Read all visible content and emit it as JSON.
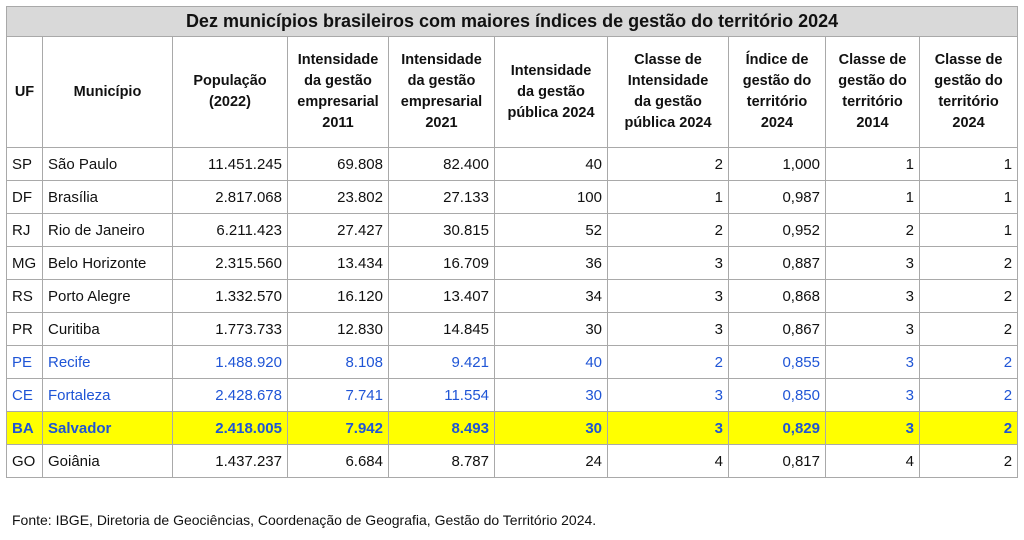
{
  "title": "Dez municípios brasileiros com maiores índices de gestão do território 2024",
  "headers": [
    "UF",
    "Município",
    "População\n(2022)",
    "Intensidade\nda gestão\nempresarial\n2011",
    "Intensidade\nda gestão\nempresarial\n2021",
    "Intensidade\nda gestão\npública 2024",
    "Classe de\nIntensidade\nda gestão\npública 2024",
    "Índice de\ngestão do\nterritório\n2024",
    "Classe de\ngestão do\nterritório\n2014",
    "Classe de\ngestão do\nterritório\n2024"
  ],
  "rows": [
    {
      "style": "normal",
      "cells": [
        "SP",
        "São Paulo",
        "11.451.245",
        "69.808",
        "82.400",
        "40",
        "2",
        "1,000",
        "1",
        "1"
      ]
    },
    {
      "style": "normal",
      "cells": [
        "DF",
        "Brasília",
        "2.817.068",
        "23.802",
        "27.133",
        "100",
        "1",
        "0,987",
        "1",
        "1"
      ]
    },
    {
      "style": "normal",
      "cells": [
        "RJ",
        "Rio de Janeiro",
        "6.211.423",
        "27.427",
        "30.815",
        "52",
        "2",
        "0,952",
        "2",
        "1"
      ]
    },
    {
      "style": "normal",
      "cells": [
        "MG",
        "Belo Horizonte",
        "2.315.560",
        "13.434",
        "16.709",
        "36",
        "3",
        "0,887",
        "3",
        "2"
      ]
    },
    {
      "style": "normal",
      "cells": [
        "RS",
        "Porto Alegre",
        "1.332.570",
        "16.120",
        "13.407",
        "34",
        "3",
        "0,868",
        "3",
        "2"
      ]
    },
    {
      "style": "normal",
      "cells": [
        "PR",
        "Curitiba",
        "1.773.733",
        "12.830",
        "14.845",
        "30",
        "3",
        "0,867",
        "3",
        "2"
      ]
    },
    {
      "style": "blue",
      "cells": [
        "PE",
        "Recife",
        "1.488.920",
        "8.108",
        "9.421",
        "40",
        "2",
        "0,855",
        "3",
        "2"
      ]
    },
    {
      "style": "blue",
      "cells": [
        "CE",
        "Fortaleza",
        "2.428.678",
        "7.741",
        "11.554",
        "30",
        "3",
        "0,850",
        "3",
        "2"
      ]
    },
    {
      "style": "highlight",
      "cells": [
        "BA",
        "Salvador",
        "2.418.005",
        "7.942",
        "8.493",
        "30",
        "3",
        "0,829",
        "3",
        "2"
      ]
    },
    {
      "style": "normal",
      "cells": [
        "GO",
        "Goiânia",
        "1.437.237",
        "6.684",
        "8.787",
        "24",
        "4",
        "0,817",
        "4",
        "2"
      ]
    }
  ],
  "source": "Fonte: IBGE, Diretoria de Geociências, Coordenação de Geografia, Gestão do Território 2024.",
  "colors": {
    "title_bg": "#d9d9d9",
    "highlight_bg": "#ffff00",
    "highlight_text": "#1f55d6",
    "blue_text": "#1f55d6",
    "border": "#a9a9a9"
  }
}
